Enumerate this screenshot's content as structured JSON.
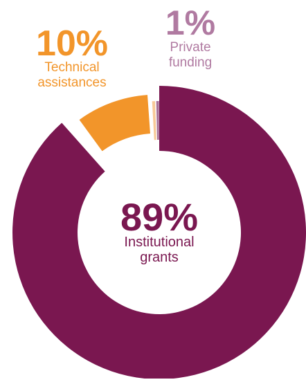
{
  "chart_data": {
    "type": "pie",
    "slices": [
      {
        "label_lines": [
          "Institutional",
          "grants"
        ],
        "percent_label": "89%",
        "value": 89,
        "color": "#7a1750"
      },
      {
        "label_lines": [
          "Technical",
          "assistances"
        ],
        "percent_label": "10%",
        "value": 10,
        "color": "#f2952a"
      },
      {
        "label_lines": [
          "Private",
          "funding"
        ],
        "percent_label": "1%",
        "value": 1,
        "color": "#b07aa1"
      }
    ],
    "minor_slice_colors": [
      "#f7c998",
      "#a87098"
    ]
  }
}
